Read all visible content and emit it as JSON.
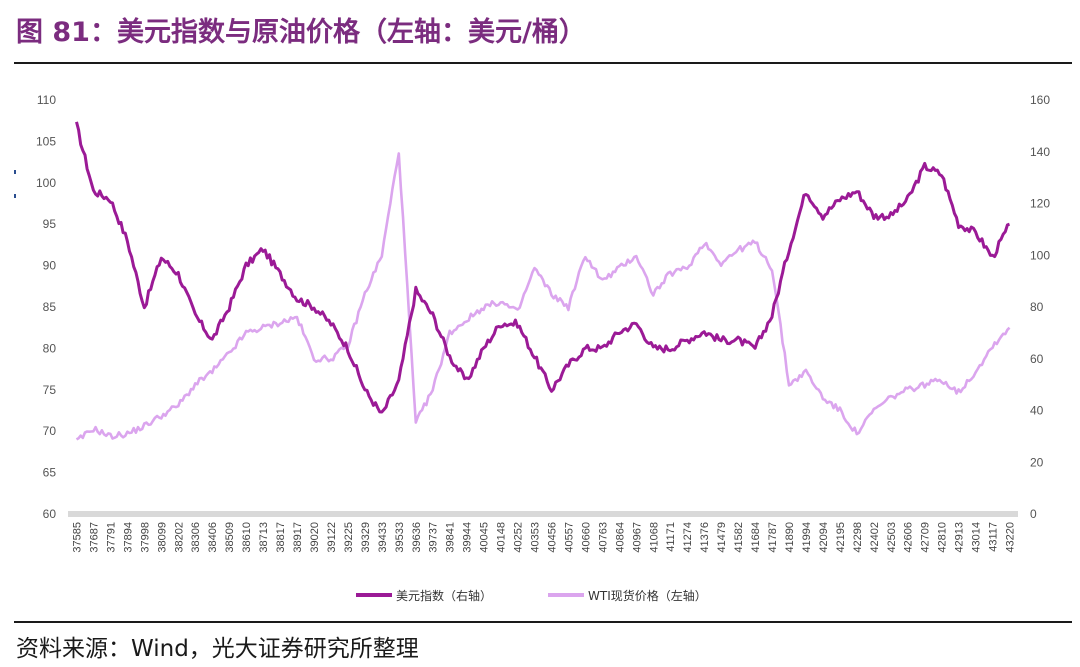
{
  "header": {
    "title": "图 81：美元指数与原油价格（左轴：美元/桶）"
  },
  "footer": {
    "source": "资料来源：Wind，光大证券研究所整理"
  },
  "chart_data": {
    "type": "line",
    "x_tick_labels": [
      "37585",
      "37687",
      "37791",
      "37894",
      "37998",
      "38099",
      "38202",
      "38306",
      "38406",
      "38509",
      "38610",
      "38713",
      "38817",
      "38917",
      "39020",
      "39122",
      "39225",
      "39329",
      "39433",
      "39533",
      "39636",
      "39737",
      "39841",
      "39944",
      "40045",
      "40148",
      "40252",
      "40353",
      "40456",
      "40557",
      "40660",
      "40763",
      "40864",
      "40967",
      "41068",
      "41171",
      "41274",
      "41376",
      "41479",
      "41582",
      "41684",
      "41787",
      "41890",
      "41994",
      "42094",
      "42195",
      "42298",
      "42402",
      "42503",
      "42606",
      "42709",
      "42810",
      "42913",
      "43014",
      "43117",
      "43220"
    ],
    "left_axis": {
      "min": 60,
      "max": 110,
      "ticks": [
        "60",
        "65",
        "70",
        "75",
        "80",
        "85",
        "90",
        "95",
        "100",
        "105",
        "110"
      ]
    },
    "right_axis": {
      "min": 0,
      "max": 160,
      "ticks": [
        "0",
        "20",
        "40",
        "60",
        "80",
        "100",
        "120",
        "140",
        "160"
      ]
    },
    "series": [
      {
        "name": "美元指数（右轴）",
        "color": "#9b1a96",
        "axis": "left",
        "values": [
          107,
          99,
          98,
          93,
          85,
          91,
          89,
          84,
          81,
          85,
          90,
          92,
          89,
          86,
          85,
          83,
          80,
          75,
          72,
          76,
          87,
          84,
          79,
          76,
          80,
          83,
          83,
          79,
          75,
          78,
          80,
          80,
          82,
          83,
          80,
          80,
          81,
          82,
          81,
          81,
          80,
          84,
          92,
          99,
          96,
          98,
          99,
          96,
          96,
          98,
          102,
          101,
          95,
          94,
          91,
          95
        ]
      },
      {
        "name": "WTI现货价格（左轴）",
        "color": "#dba5ee",
        "axis": "right",
        "values": [
          28,
          33,
          30,
          31,
          34,
          38,
          42,
          50,
          55,
          62,
          70,
          72,
          74,
          76,
          60,
          60,
          65,
          85,
          100,
          140,
          35,
          48,
          70,
          75,
          80,
          82,
          78,
          95,
          85,
          80,
          100,
          90,
          95,
          100,
          85,
          93,
          95,
          105,
          97,
          102,
          105,
          95,
          50,
          55,
          45,
          40,
          31,
          40,
          45,
          48,
          50,
          52,
          47,
          55,
          65,
          72
        ]
      }
    ]
  }
}
